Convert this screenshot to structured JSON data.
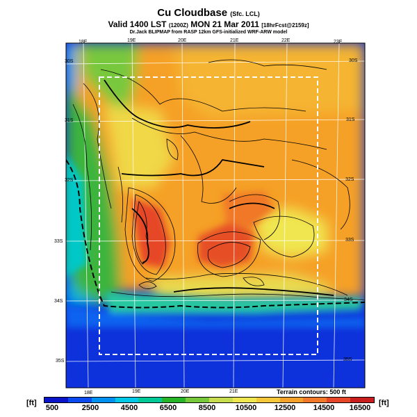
{
  "title": {
    "main": "Cu Cloudbase",
    "main_suffix": "(Sfc. LCL)",
    "line2_a": "Valid 1400 LST",
    "line2_b": "(1200Z)",
    "line2_c": "MON 21 Mar 2011",
    "line2_d": "[18hrFcst@2159z]",
    "line3": "Dr.Jack BLIPMAP from RASP 12km GFS-initialized WRF-ARW model"
  },
  "map": {
    "top_longitudes": [
      "18E",
      "19E",
      "20E",
      "21E",
      "22E",
      "23E"
    ],
    "bottom_longitudes": [
      "18E",
      "19E",
      "20E",
      "21E"
    ],
    "left_latitudes": [
      "30S",
      "31S",
      "32S",
      "33S",
      "34S",
      "35S"
    ],
    "right_latitudes": [
      "30S",
      "31S",
      "32S",
      "33S",
      "34S",
      "35S"
    ],
    "terrain_note": "Terrain contours: 500 ft"
  },
  "colorbar": {
    "unit_left": "[ft]",
    "unit_right": "[ft]",
    "ticks": [
      "500",
      "2500",
      "4500",
      "6500",
      "8500",
      "10500",
      "12500",
      "14500",
      "16500"
    ],
    "colors": [
      "#0a14c8",
      "#0a4af0",
      "#0090f0",
      "#00c8e6",
      "#00c896",
      "#28b428",
      "#78c83c",
      "#c8dc50",
      "#f0e650",
      "#f5c83c",
      "#f5a028",
      "#f07828",
      "#e64628",
      "#c81e1e"
    ]
  }
}
